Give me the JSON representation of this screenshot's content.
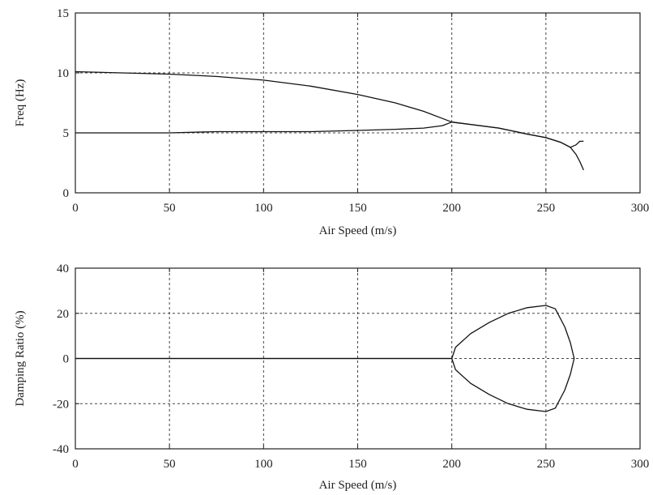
{
  "chart_data": [
    {
      "type": "line",
      "xlabel": "Air Speed (m/s)",
      "ylabel": "Freq (Hz)",
      "xlim": [
        0,
        300
      ],
      "ylim": [
        0,
        15
      ],
      "xticks": [
        "0",
        "50",
        "100",
        "150",
        "200",
        "250",
        "300"
      ],
      "yticks": [
        "0",
        "5",
        "10",
        "15"
      ],
      "grid": true,
      "series": [
        {
          "x": [
            0,
            25,
            50,
            75,
            100,
            125,
            150,
            170,
            185,
            195,
            200,
            210,
            225,
            240,
            250,
            258,
            263,
            266,
            268,
            270
          ],
          "y": [
            10.1,
            10.0,
            9.9,
            9.7,
            9.4,
            8.9,
            8.2,
            7.5,
            6.8,
            6.2,
            5.9,
            5.7,
            5.4,
            4.9,
            4.6,
            4.2,
            3.8,
            3.2,
            2.6,
            1.9
          ]
        },
        {
          "x": [
            0,
            25,
            50,
            75,
            100,
            125,
            150,
            170,
            185,
            195,
            200,
            210,
            225,
            240,
            250,
            258,
            263,
            266,
            268,
            270
          ],
          "y": [
            5.0,
            5.0,
            5.0,
            5.1,
            5.1,
            5.1,
            5.2,
            5.3,
            5.4,
            5.6,
            5.9,
            5.7,
            5.4,
            4.9,
            4.6,
            4.2,
            3.8,
            4.0,
            4.3,
            4.3
          ]
        }
      ]
    },
    {
      "type": "line",
      "xlabel": "Air Speed (m/s)",
      "ylabel": "Damping Ratio (%)",
      "xlim": [
        0,
        300
      ],
      "ylim": [
        -40,
        40
      ],
      "xticks": [
        "0",
        "50",
        "100",
        "150",
        "200",
        "250",
        "300"
      ],
      "yticks": [
        "-40",
        "-20",
        "0",
        "20",
        "40"
      ],
      "grid": true,
      "series": [
        {
          "x": [
            0,
            50,
            100,
            150,
            200,
            202,
            210,
            220,
            230,
            240,
            250,
            255,
            260,
            263,
            265
          ],
          "y": [
            0,
            0,
            0,
            0,
            0,
            5,
            11,
            16,
            20,
            22.5,
            23.5,
            22,
            14,
            7,
            0
          ]
        },
        {
          "x": [
            0,
            50,
            100,
            150,
            200,
            202,
            210,
            220,
            230,
            240,
            250,
            255,
            260,
            263,
            265
          ],
          "y": [
            0,
            0,
            0,
            0,
            0,
            -5,
            -11,
            -16,
            -20,
            -22.5,
            -23.5,
            -22,
            -14,
            -7,
            0
          ]
        }
      ]
    }
  ]
}
